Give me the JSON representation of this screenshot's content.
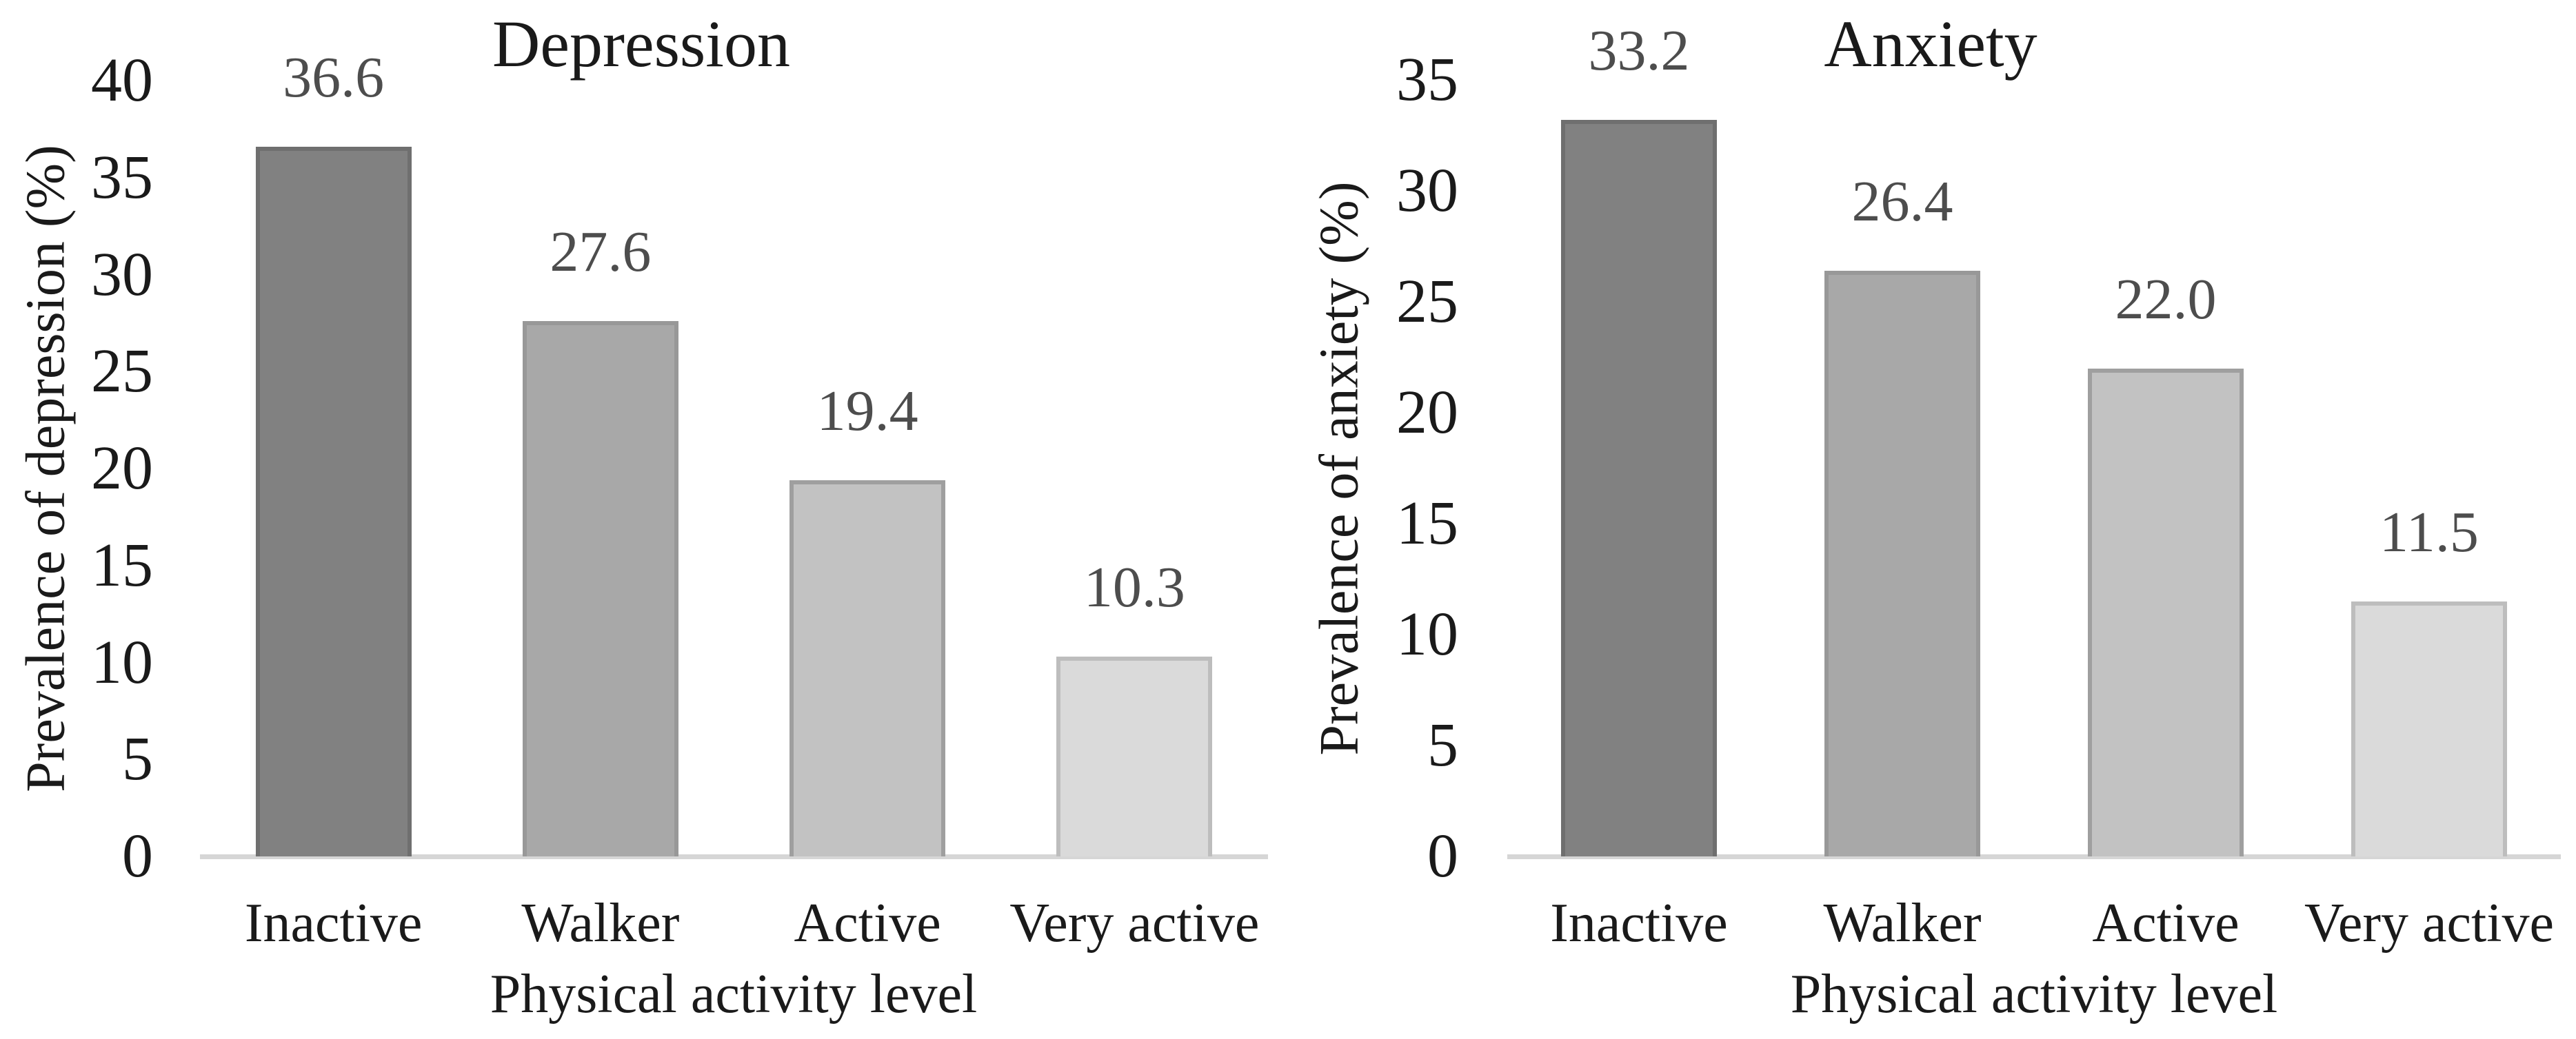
{
  "figure": {
    "background": "#ffffff",
    "axis_line_color": "#d6d6d6",
    "text_color": "#1a1a1a",
    "value_label_color": "#4d4d4d",
    "bar_fill_colors": [
      "#818181",
      "#a8a8a8",
      "#c2c2c2",
      "#dadada"
    ],
    "bar_border_colors": [
      "#6f6f6f",
      "#989898",
      "#9f9f9f",
      "#bdbdbd"
    ]
  },
  "chart_data": [
    {
      "type": "bar",
      "title": "Depression",
      "ylabel": "Prevalence of depression (%)",
      "xlabel": "Physical activity level",
      "categories": [
        "Inactive",
        "Walker",
        "Active",
        "Very active"
      ],
      "values": [
        36.6,
        27.6,
        19.4,
        10.3
      ],
      "value_labels": [
        "36.6",
        "27.6",
        "19.4",
        "10.3"
      ],
      "ylim": [
        0,
        40
      ],
      "ytick_step": 5,
      "yticks": [
        0,
        5,
        10,
        15,
        20,
        25,
        30,
        35,
        40
      ],
      "grid": false,
      "legend": false
    },
    {
      "type": "bar",
      "title": "Anxiety",
      "ylabel": "Prevalence of anxiety (%)",
      "xlabel": "Physical activity level",
      "categories": [
        "Inactive",
        "Walker",
        "Active",
        "Very active"
      ],
      "values": [
        33.2,
        26.4,
        22.0,
        11.5
      ],
      "value_labels": [
        "33.2",
        "26.4",
        "22.0",
        "11.5"
      ],
      "ylim": [
        0,
        35
      ],
      "ytick_step": 5,
      "yticks": [
        0,
        5,
        10,
        15,
        20,
        25,
        30,
        35
      ],
      "grid": false,
      "legend": false
    }
  ]
}
